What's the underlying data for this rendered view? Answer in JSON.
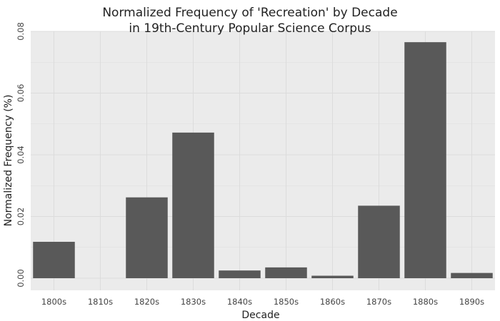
{
  "chart_data": {
    "type": "bar",
    "title_lines": [
      "Normalized Frequency of 'Recreation' by Decade",
      "in 19th-Century Popular Science Corpus"
    ],
    "xlabel": "Decade",
    "ylabel": "Normalized Frequency (%)",
    "categories": [
      "1800s",
      "1810s",
      "1820s",
      "1830s",
      "1840s",
      "1850s",
      "1860s",
      "1870s",
      "1880s",
      "1890s"
    ],
    "values": [
      0.0118,
      0.0,
      0.0262,
      0.0472,
      0.0025,
      0.0035,
      0.0008,
      0.0235,
      0.0765,
      0.0017
    ],
    "ylim": [
      0,
      0.08
    ],
    "yticks": [
      0.0,
      0.02,
      0.04,
      0.06,
      0.08
    ],
    "ytick_labels": [
      "0.00",
      "0.02",
      "0.04",
      "0.06",
      "0.08"
    ],
    "grid": true,
    "legend": "none",
    "colors": {
      "panel": "#ebebeb",
      "grid": "#dcdcdc",
      "bar": "#595959"
    }
  }
}
